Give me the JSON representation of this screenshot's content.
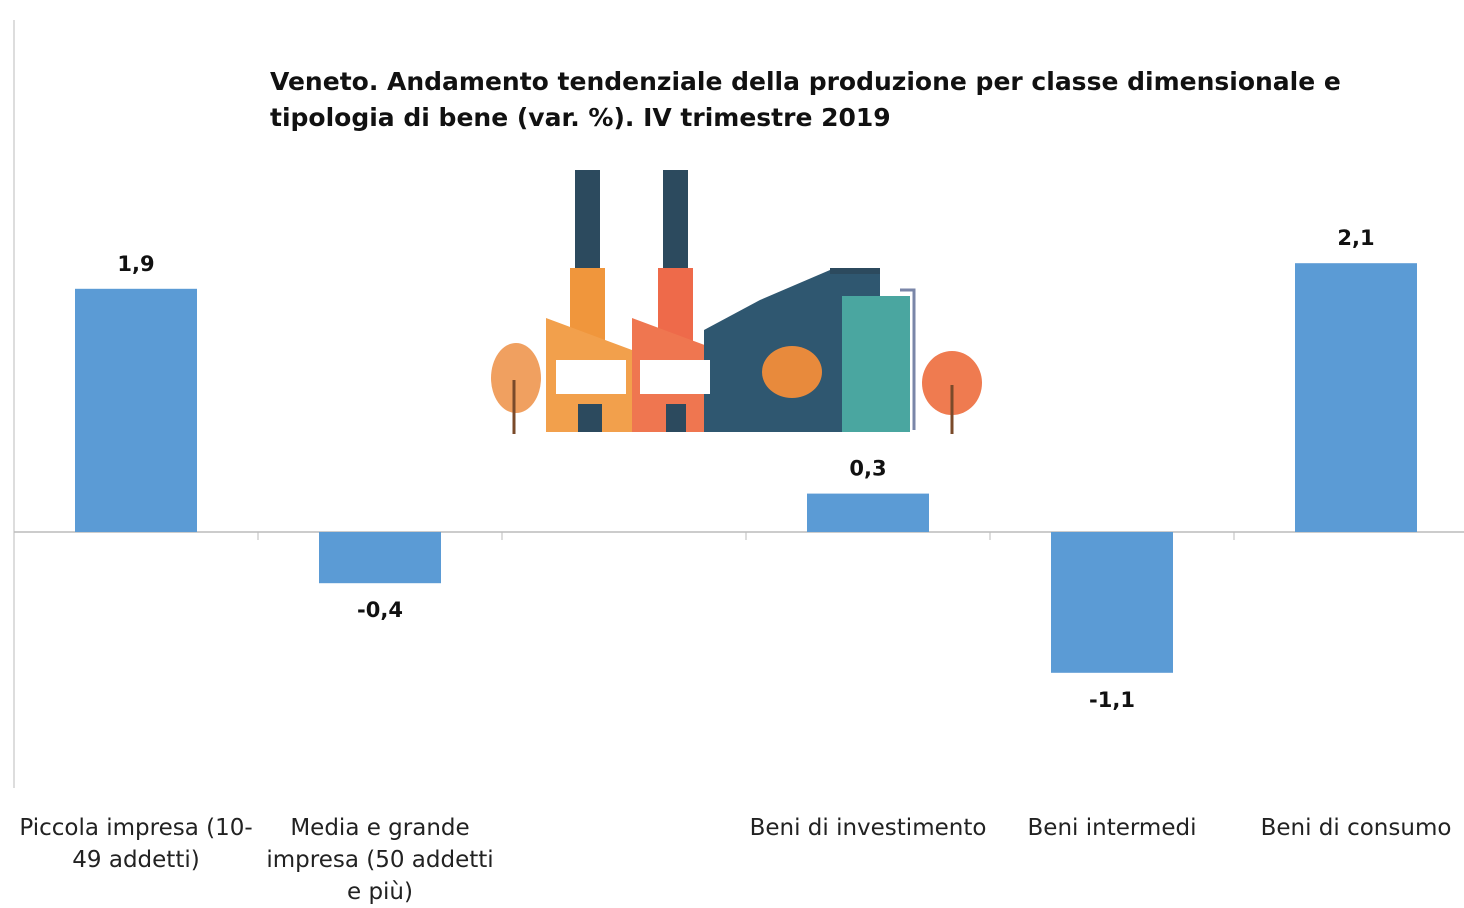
{
  "chart_data": {
    "type": "bar",
    "title": "Veneto. Andamento tendenziale della produzione per classe dimensionale e tipologia di bene (var. %). IV trimestre 2019",
    "categories": [
      "Piccola impresa (10-49 addetti)",
      "Media e grande impresa (50 addetti e più)",
      null,
      "Beni di investimento",
      "Beni intermedi",
      "Beni di consumo"
    ],
    "values": [
      1.9,
      -0.4,
      null,
      0.3,
      -1.1,
      2.1
    ],
    "value_labels": [
      "1,9",
      "-0,4",
      null,
      "0,3",
      "-1,1",
      "2,1"
    ],
    "color": "#5b9bd5",
    "ylim": [
      -2,
      4
    ]
  }
}
